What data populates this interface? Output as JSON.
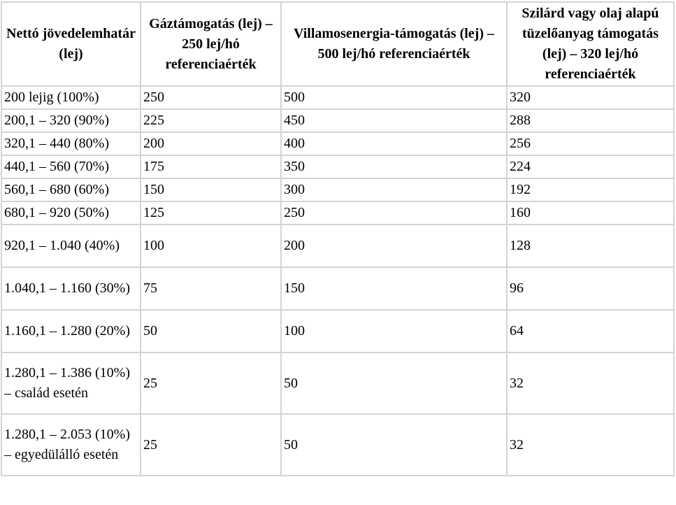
{
  "table": {
    "headers": [
      "Nettó jövedelemhatár (lej)",
      "Gáztámogatás (lej) – 250 lej/hó referenciaérték",
      "Villamosenergia-támogatás (lej) – 500 lej/hó referenciaérték",
      "Szilárd vagy olaj alapú tüzelőanyag támogatás (lej) – 320 lej/hó referenciaérték"
    ],
    "rows": [
      [
        "200 lejig (100%)",
        "250",
        "500",
        "320"
      ],
      [
        "200,1 – 320 (90%)",
        "225",
        "450",
        "288"
      ],
      [
        "320,1 – 440 (80%)",
        "200",
        "400",
        "256"
      ],
      [
        "440,1 – 560 (70%)",
        "175",
        "350",
        "224"
      ],
      [
        "560,1 – 680 (60%)",
        "150",
        "300",
        "192"
      ],
      [
        "680,1 – 920 (50%)",
        "125",
        "250",
        "160"
      ],
      [
        "920,1 – 1.040 (40%)",
        "100",
        "200",
        "128"
      ],
      [
        "1.040,1 – 1.160 (30%)",
        "75",
        "150",
        "96"
      ],
      [
        "1.160,1 – 1.280 (20%)",
        "50",
        "100",
        "64"
      ],
      [
        "1.280,1 – 1.386 (10%) – család esetén",
        "25",
        "50",
        "32"
      ],
      [
        "1.280,1 – 2.053 (10%) – egyedülálló esetén",
        "25",
        "50",
        "32"
      ]
    ]
  }
}
